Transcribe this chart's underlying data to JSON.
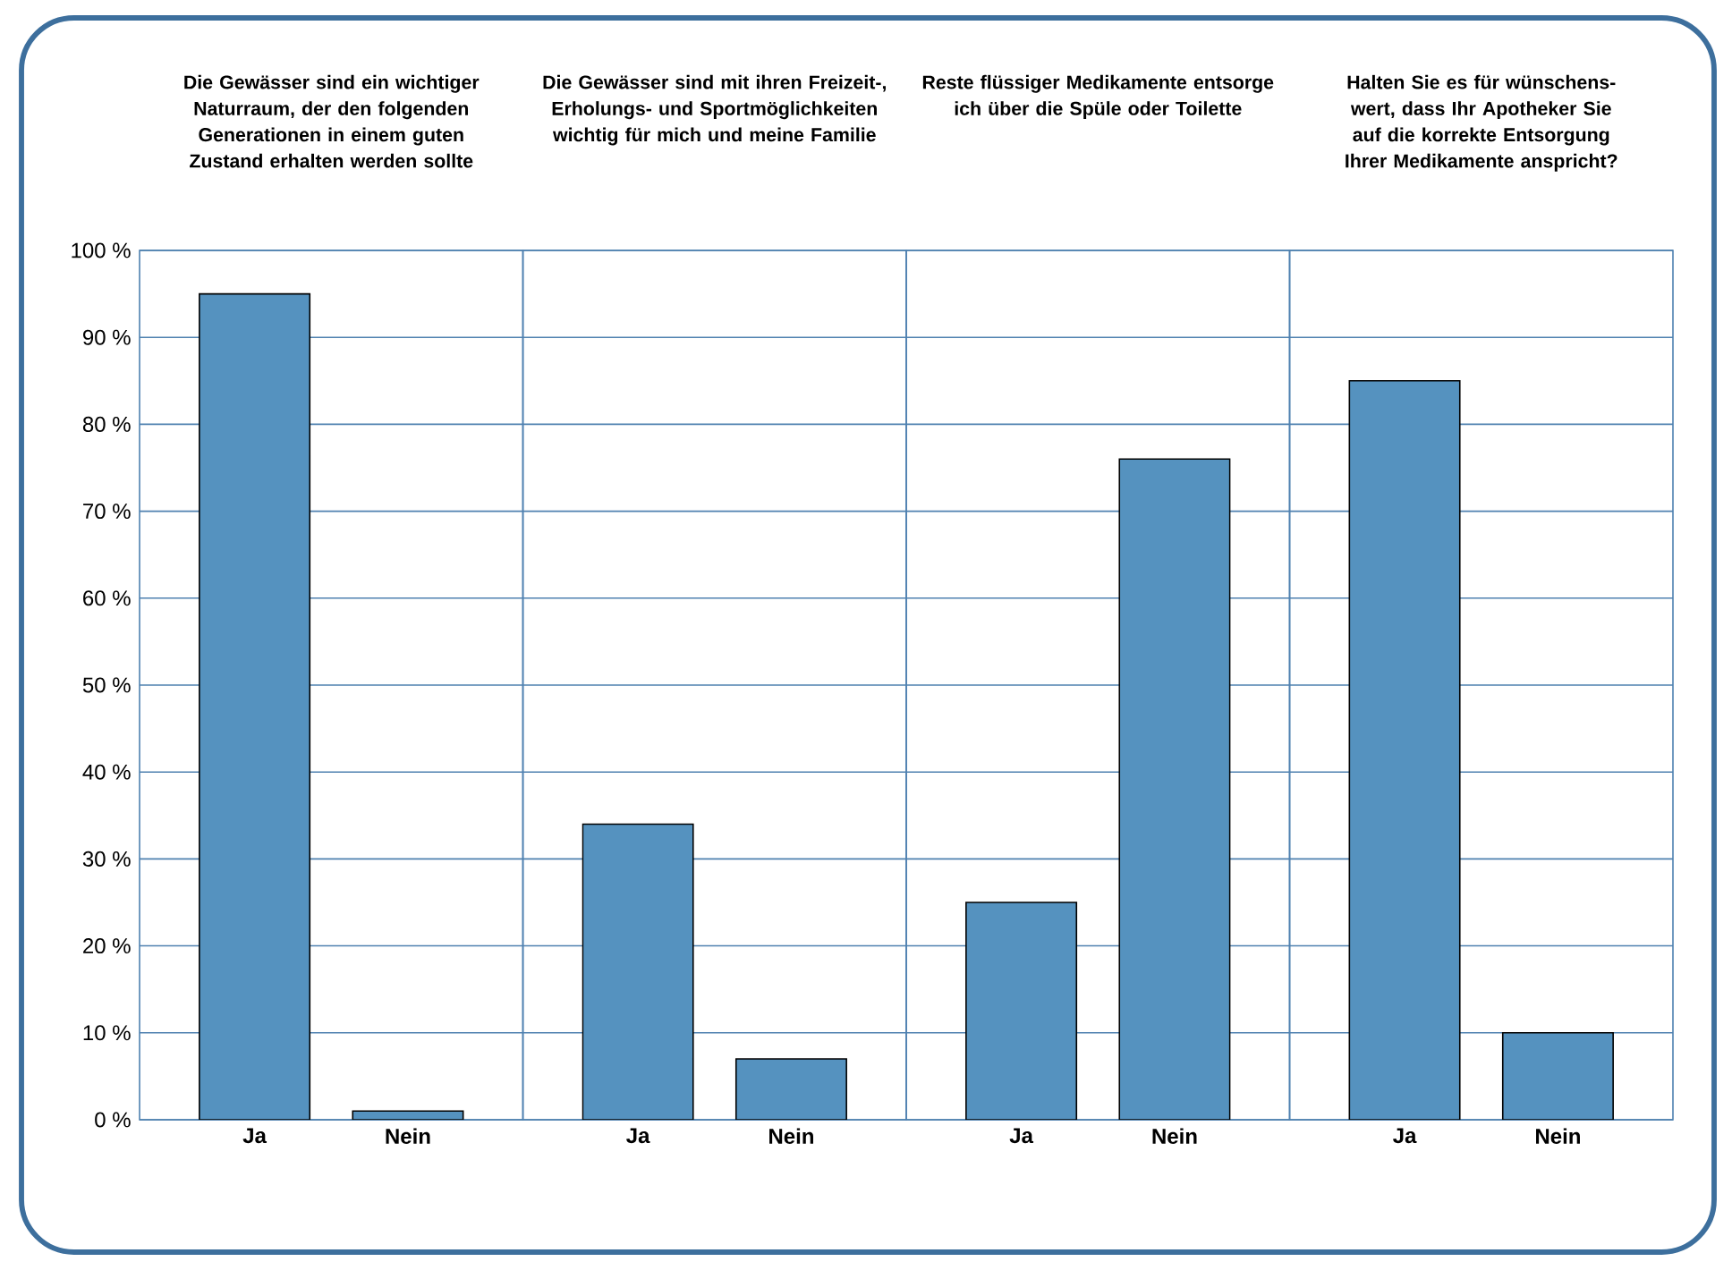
{
  "chart_data": [
    {
      "type": "bar",
      "title": "Die Gewässer sind ein wichtiger Naturraum, der den folgenden Generationen in einem guten Zustand erhalten werden sollte",
      "categories": [
        "Ja",
        "Nein"
      ],
      "values": [
        95,
        1
      ],
      "color": "#5592bf",
      "ylim": [
        0,
        100
      ],
      "yticks": [
        {
          "value": 0,
          "label": "0 %"
        },
        {
          "value": 10,
          "label": "10 %"
        },
        {
          "value": 20,
          "label": "20 %"
        },
        {
          "value": 30,
          "label": "30 %"
        },
        {
          "value": 40,
          "label": "40 %"
        },
        {
          "value": 50,
          "label": "50 %"
        },
        {
          "value": 60,
          "label": "60 %"
        },
        {
          "value": 70,
          "label": "70 %"
        },
        {
          "value": 80,
          "label": "80 %"
        },
        {
          "value": 90,
          "label": "90 %"
        },
        {
          "value": 100,
          "label": "100 %"
        }
      ],
      "grid": "y"
    },
    {
      "type": "bar",
      "title": "Die Gewässer sind mit ihren Freizeit-, Erholungs- und Sportmöglichkeiten wichtig für mich und meine Familie",
      "categories": [
        "Ja",
        "Nein"
      ],
      "values": [
        34,
        7
      ],
      "color": "#5592bf",
      "ylim": [
        0,
        100
      ],
      "yticks": [
        0,
        10,
        20,
        30,
        40,
        50,
        60,
        70,
        80,
        90,
        100
      ],
      "grid": "y",
      "tick_labels": "x"
    },
    {
      "type": "bar",
      "title": "Reste flüssiger Medikamente entsorge ich über die Spüle oder Toilette",
      "categories": [
        "Ja",
        "Nein"
      ],
      "values": [
        25,
        76
      ],
      "color": "#5592bf",
      "ylim": [
        0,
        100
      ],
      "yticks": [
        0,
        10,
        20,
        30,
        40,
        50,
        60,
        70,
        80,
        90,
        100
      ],
      "grid": "y",
      "tick_labels": "x"
    },
    {
      "type": "bar",
      "title": "Halten Sie es für wünschens-wert, dass Ihr Apotheker Sie auf die korrekte Entsorgung Ihrer Medikamente anspricht?",
      "categories": [
        "Ja",
        "Nein"
      ],
      "values": [
        85,
        10
      ],
      "color": "#5592bf",
      "ylim": [
        0,
        100
      ],
      "yticks": [
        0,
        10,
        20,
        30,
        40,
        50,
        60,
        70,
        80,
        90,
        100
      ],
      "grid": "y",
      "tick_labels": "x"
    }
  ]
}
